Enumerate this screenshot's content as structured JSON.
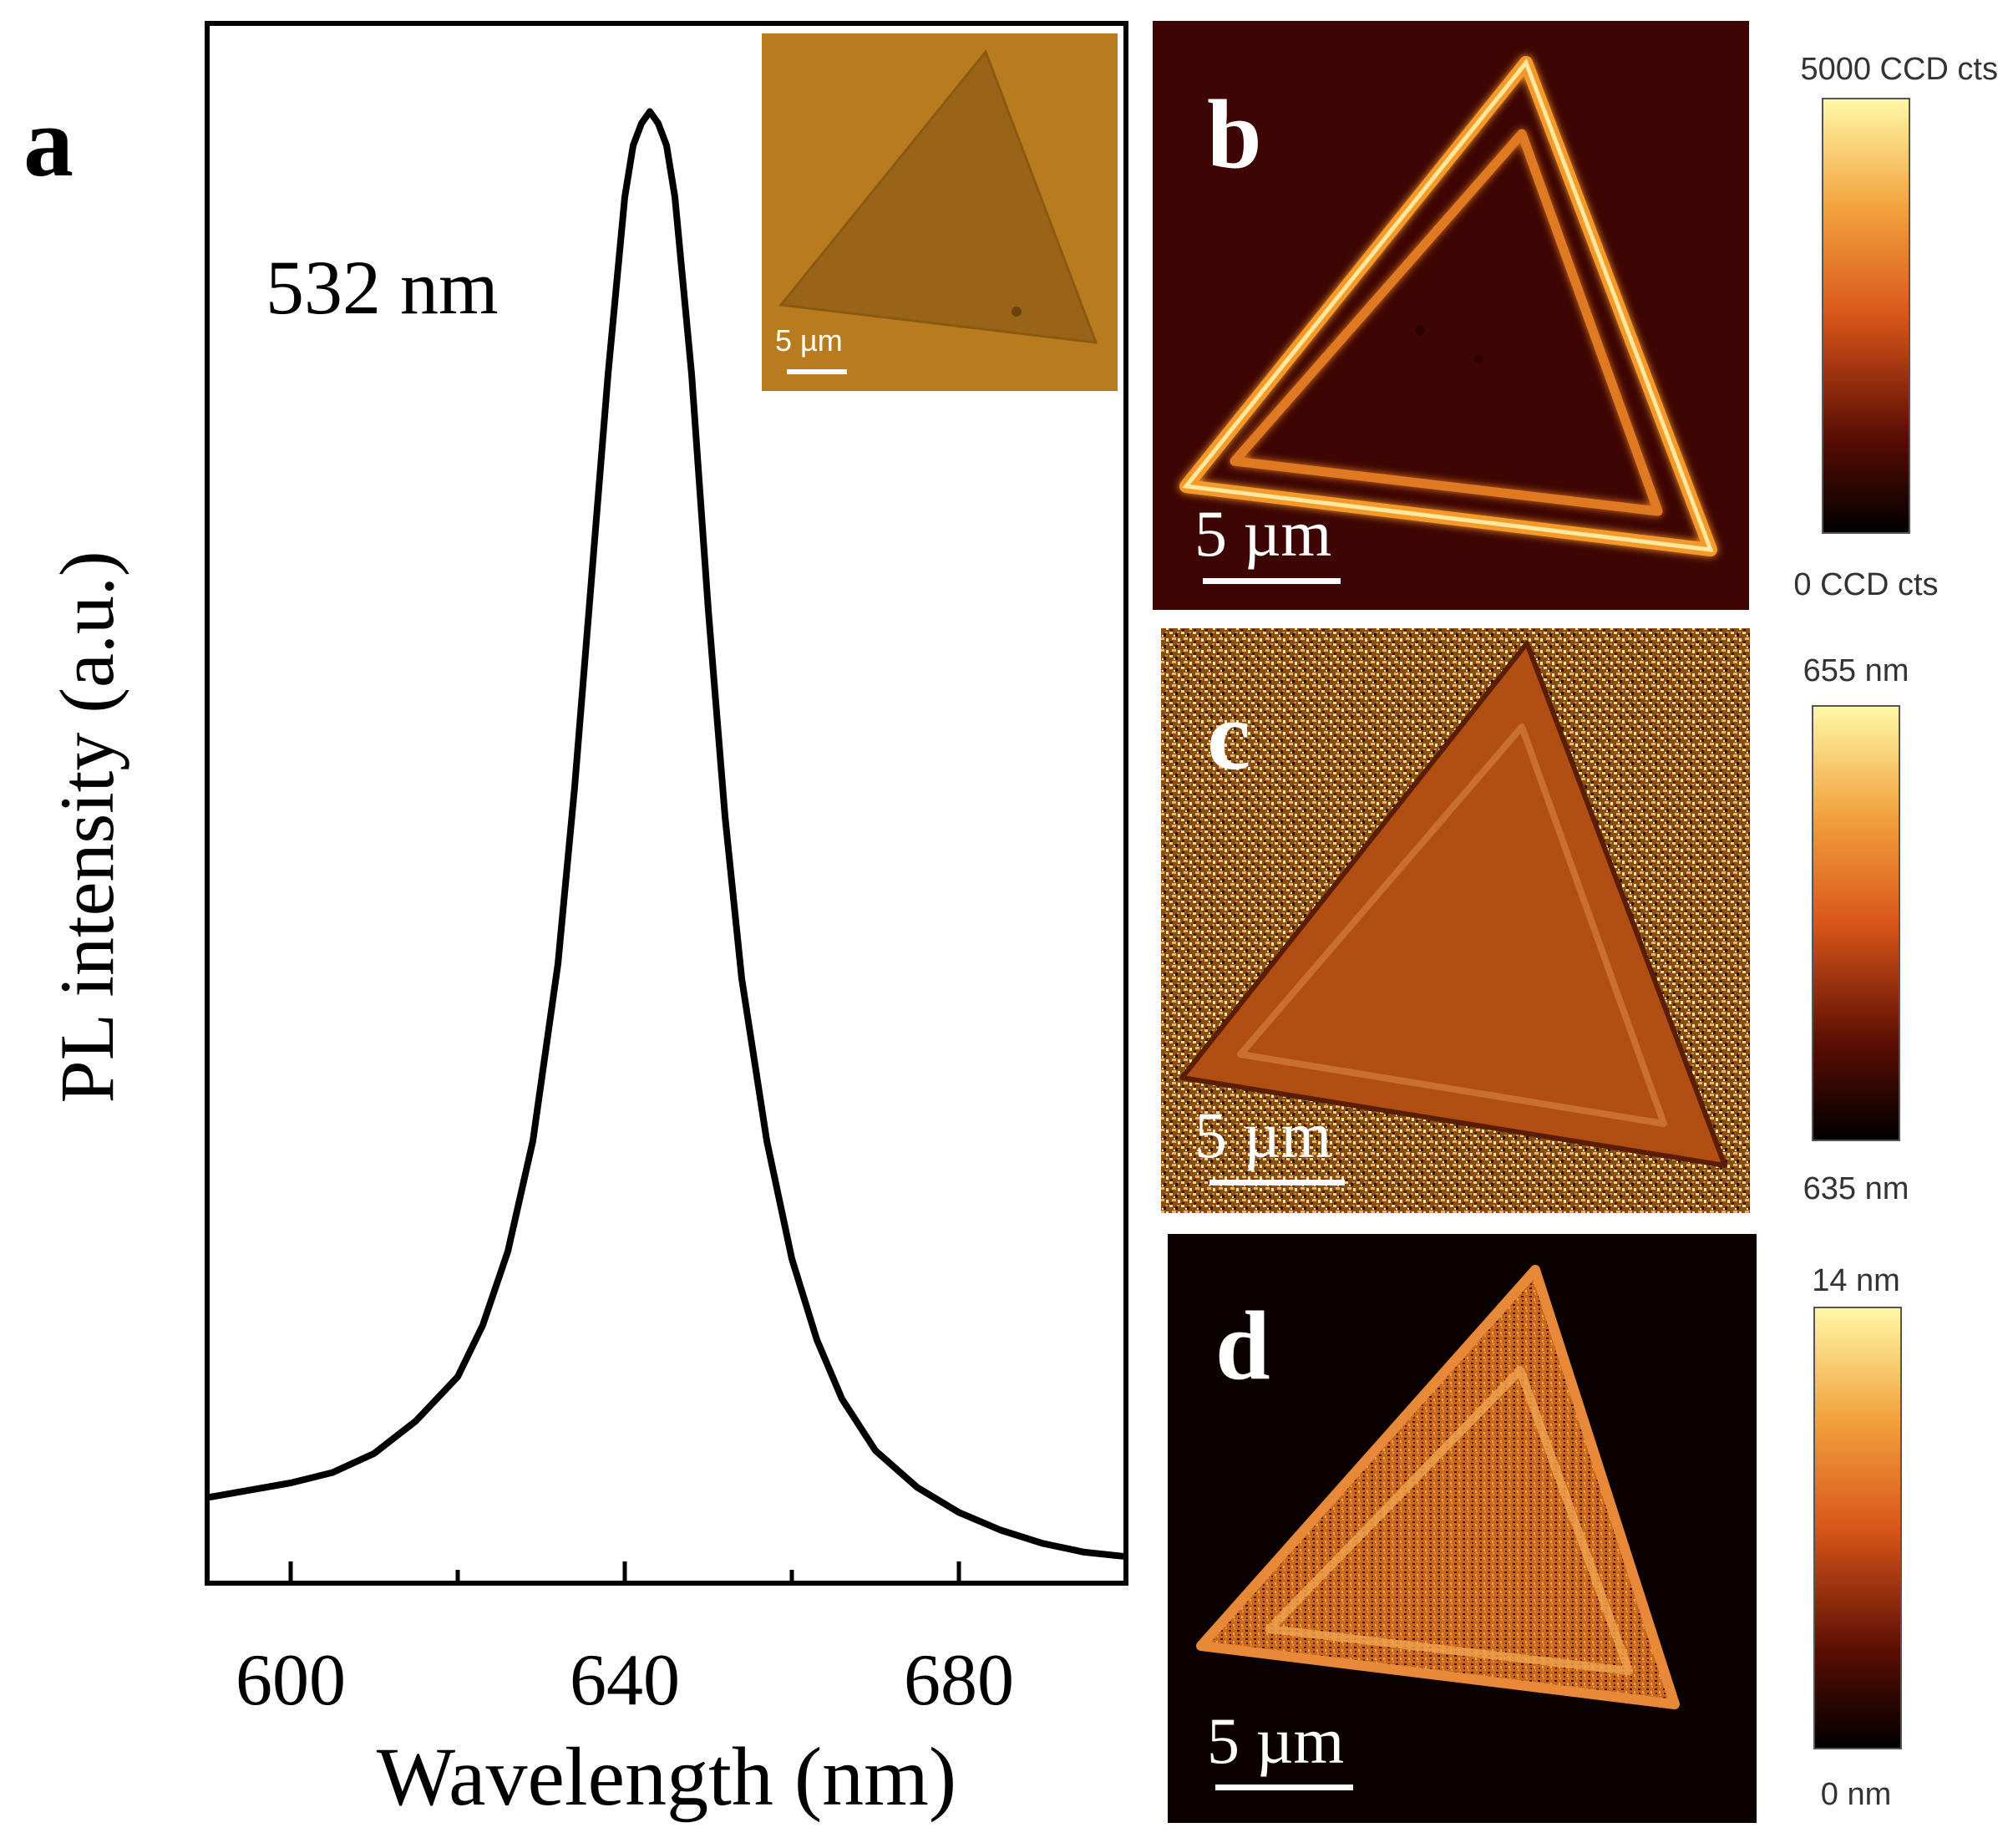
{
  "panel_labels": {
    "a": "a",
    "b": "b",
    "c": "c",
    "d": "d"
  },
  "chart_data": {
    "type": "line",
    "title": "",
    "annotation": "532 nm",
    "xlabel": "Wavelength (nm)",
    "ylabel": "PL intensity (a.u.)",
    "xlim": [
      590,
      700
    ],
    "ylim": [
      0,
      1.0
    ],
    "xticks": [
      600,
      640,
      680
    ],
    "yticks_visible": false,
    "series": [
      {
        "name": "PL spectrum",
        "x": [
          590,
          595,
          600,
          605,
          610,
          615,
          620,
          623,
          626,
          629,
          632,
          634,
          636,
          638,
          640,
          641,
          642,
          643,
          644,
          645,
          646,
          648,
          650,
          652,
          654,
          657,
          660,
          663,
          666,
          670,
          675,
          680,
          685,
          690,
          695,
          700
        ],
        "y": [
          0.058,
          0.063,
          0.068,
          0.075,
          0.088,
          0.11,
          0.14,
          0.175,
          0.225,
          0.3,
          0.42,
          0.54,
          0.68,
          0.82,
          0.94,
          0.975,
          0.99,
          0.998,
          0.99,
          0.975,
          0.94,
          0.82,
          0.66,
          0.52,
          0.41,
          0.3,
          0.22,
          0.165,
          0.125,
          0.09,
          0.065,
          0.048,
          0.036,
          0.027,
          0.021,
          0.018
        ]
      }
    ]
  },
  "inset": {
    "scale_label": "5 µm"
  },
  "maps": [
    {
      "id": "b",
      "label": "b",
      "scale_label": "5 µm",
      "cbar_max": "5000 CCD cts",
      "cbar_min": "0 CCD cts"
    },
    {
      "id": "c",
      "label": "c",
      "scale_label": "5 µm",
      "cbar_max": "655 nm",
      "cbar_min": "635 nm"
    },
    {
      "id": "d",
      "label": "d",
      "scale_label": "5 µm",
      "cbar_max": "14 nm",
      "cbar_min": "0 nm"
    }
  ],
  "colors": {
    "cbar_top": "#fff8a8",
    "cbar_mid": "#d9561a",
    "cbar_low": "#5a0d04",
    "cbar_bottom": "#000000",
    "map_bg_b": "#3d0503",
    "map_bg_d": "#0b0200",
    "inset_bg": "#b87b1e"
  }
}
